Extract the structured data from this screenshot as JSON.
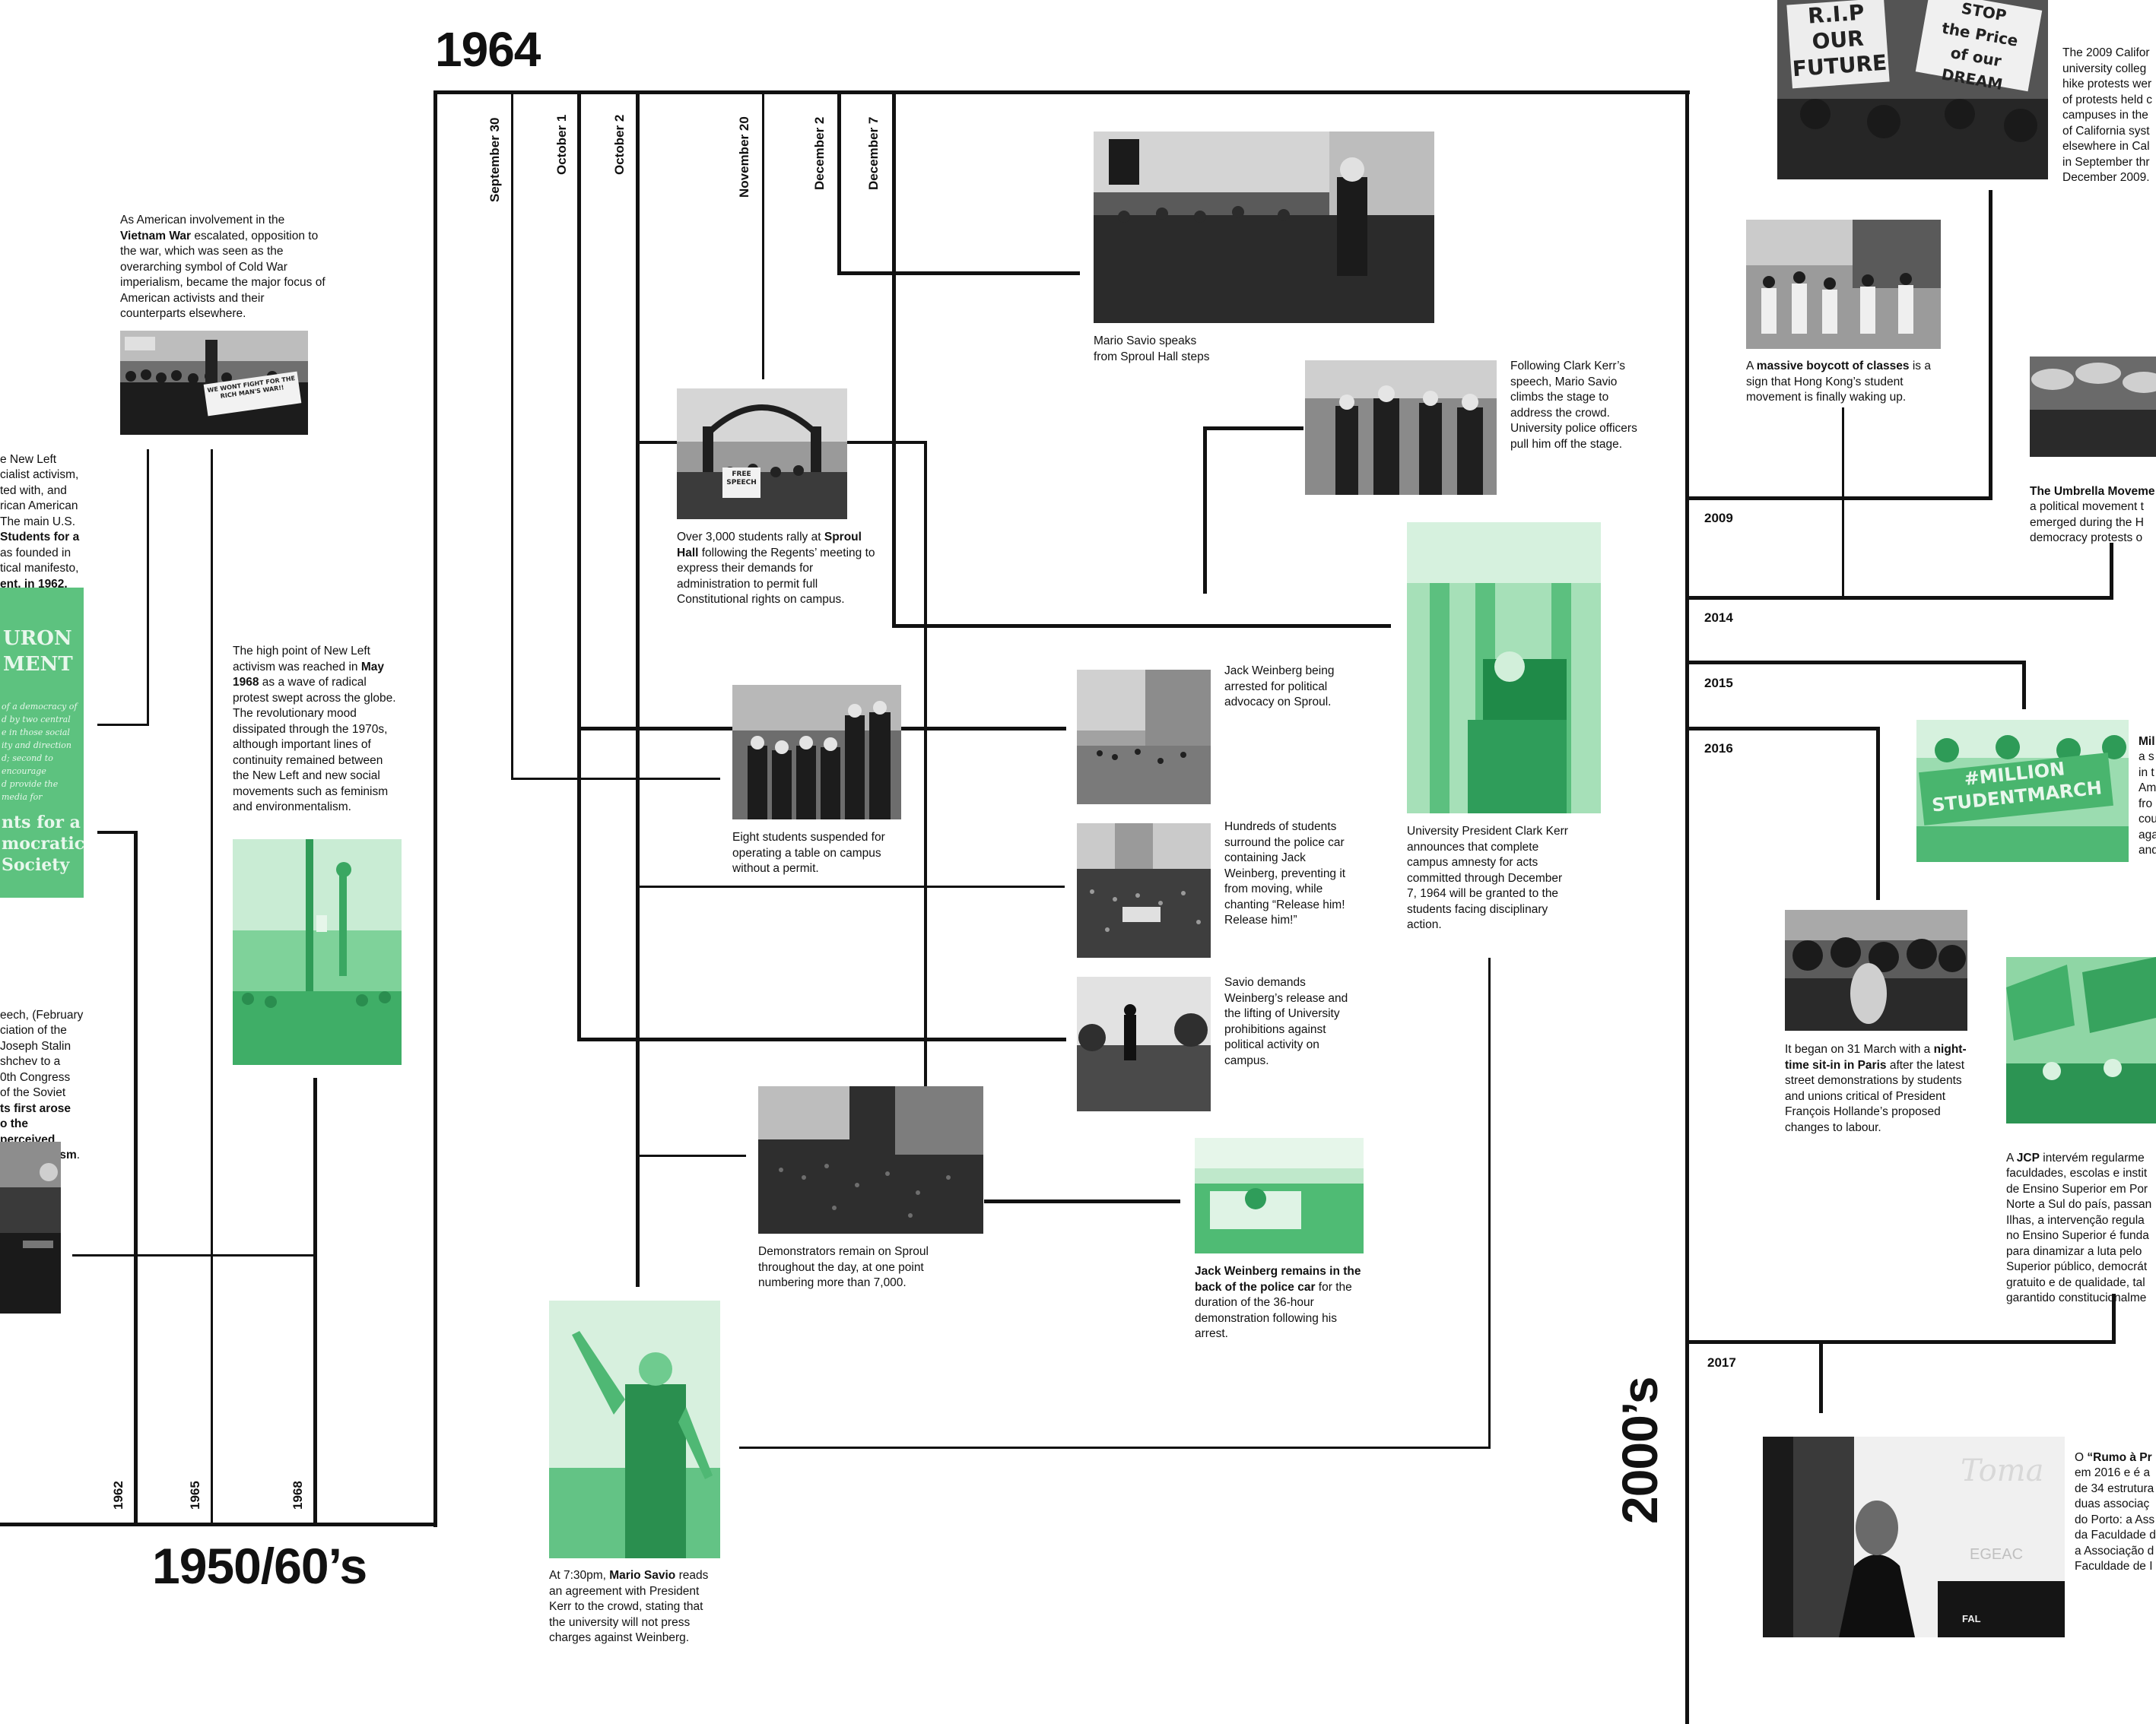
{
  "headings": {
    "year_1964": "1964",
    "era_1950_60s": "1950/60’s",
    "era_2000s": "2000’s"
  },
  "dates_1964": [
    "September 30",
    "October 1",
    "October 2",
    "November 20",
    "December 2",
    "December 7"
  ],
  "years_1950_60s": [
    "1962",
    "1965",
    "1968"
  ],
  "years_2000s": [
    "2009",
    "2014",
    "2015",
    "2016",
    "2017"
  ],
  "left_column": {
    "vietnam_pre": "As American involvement in the ",
    "vietnam_bold": "Vietnam War",
    "vietnam_post": " escalated, opposition to the war, which was seen as the overarching symbol of Cold War imperialism, became the major focus of American activists and their counterparts elsewhere.",
    "newleft_text": "e New Left\ncialist activism,\nted with, and\nrican American\nThe main U.S.",
    "newleft_bold1": "Students for a",
    "newleft_text2": "as founded in\ntical manifesto,",
    "newleft_bold2": "ent, in 1962.",
    "may68_pre": "The high point of New Left activism was reached in ",
    "may68_bold": "May 1968",
    "may68_post": " as a wave of radical protest swept across the globe. The revolutionary mood dissipated through the 1970s, although important lines of continuity remained between the New Left and new social movements such as feminism and environmentalism.",
    "speech_text": "eech, (February\nciation of the\n Joseph Stalin\nshchev to a\n0th Congress\nof the Soviet",
    "speech_bold1": "ts first arose",
    "speech_bold2": "o the perceived",
    "speech_bold3": "t communism",
    "speech_end": ".",
    "poster_line1": "URON",
    "poster_line2": "MENT",
    "poster_italic": "of a democracy of\nd by two central\ne in those social\nity and direction\nd; second to encourage\nd provide the media for",
    "poster_line3": "nts for a",
    "poster_line4": "mocratic",
    "poster_line5": "Society",
    "vietnam_sign": "WE WONT FIGHT FOR THE RICH MAN'S WAR!!"
  },
  "timeline_1964": {
    "savio_steps": "Mario Savio speaks\nfrom Sproul Hall steps",
    "sproul_rally_pre": "Over 3,000 students rally at ",
    "sproul_rally_bold": "Sproul Hall",
    "sproul_rally_post": " following the Regents’ meeting to express their demands for administration to permit full Constitutional rights on campus.",
    "free_speech_sign": "FREE\nSPEECH",
    "clark_kerr_speech": "Following Clark Kerr’s speech, Mario Savio climbs the stage to address the crowd. University police officers pull him off the stage.",
    "eight_students": "Eight students suspended for operating a table on campus without a permit.",
    "weinberg_arrested": "Jack Weinberg being arrested for political advocacy on Sproul.",
    "hundreds_students": "Hundreds of students surround the police car containing Jack Weinberg, preventing it from moving, while chanting “Release him! Release him!”",
    "savio_demands": "Savio demands Weinberg’s release and the lifting of University prohibitions against political activity on campus.",
    "kerr_amnesty": "University President Clark Kerr announces that complete campus amnesty for acts committed through December 7, 1964 will be granted to the students facing disciplinary action.",
    "demonstrators": "Demonstrators remain on Sproul throughout the day, at one point numbering more than 7,000.",
    "weinberg_car_bold": "Jack Weinberg remains in the back of the police car",
    "weinberg_car_post": " for the duration of the 36-hour demonstration following his arrest.",
    "agreement_pre": "At 7:30pm, ",
    "agreement_bold": "Mario Savio",
    "agreement_post": " reads an agreement with President Kerr to the crowd, stating that the university will not press charges against Weinberg."
  },
  "timeline_2000s": {
    "california_2009": "The 2009 Califor\nuniversity colleg\nhike protests wer\nof protests held c\ncampuses in the\nof California syst\nelsewhere in Cal\nin September thr\nDecember 2009.",
    "hk_pre": "A ",
    "hk_bold": "massive boycott of classes",
    "hk_post": " is a sign that Hong Kong’s student movement is finally waking up.",
    "umbrella_bold": "The Umbrella Moveme",
    "umbrella_text": "a political movement t\nemerged during the H\ndemocracy protests o",
    "million_bold": "Mil",
    "million_text": "a s\nin t\nAm\nfro\ncou\naga\nand",
    "million_sign": "#MILLION\nSTUDENTMARCH",
    "paris_pre": "It began on 31 March with a ",
    "paris_bold": "night-time sit-in in Paris",
    "paris_post": " after the latest street demonstrations by students and unions critical of President François Hollande’s proposed changes to labour.",
    "jcp_pre": "A ",
    "jcp_bold": "JCP",
    "jcp_post": " intervém regularme\nfaculdades, escolas e instit\nde Ensino Superior em Por\nNorte a Sul do país, passan\nIlhas, a intervenção regula\nno Ensino Superior é funda\npara dinamizar a luta pelo\nSuperior público, democrát\ngratuito e de qualidade, tal\ngarantido constitucionalme",
    "rumo_pre": "O ",
    "rumo_bold": "“Rumo à Pr",
    "rumo_post": "\nem 2016 e é a\nde 34 estrutura\nduas associaç\ndo Porto: a Ass\nda Faculdade d\na Associação d\nFaculdade de I",
    "rip_sign": "R.I.P\nOUR\nFUTURE",
    "stop_sign": "STOP\nthe Price\nof our DREAM",
    "toma_text": "Toma",
    "egeac_text": "EGEAC",
    "fal_text": "FAL"
  },
  "colors": {
    "ink": "#111111",
    "green": "#4dbd72",
    "paper": "#ffffff"
  }
}
